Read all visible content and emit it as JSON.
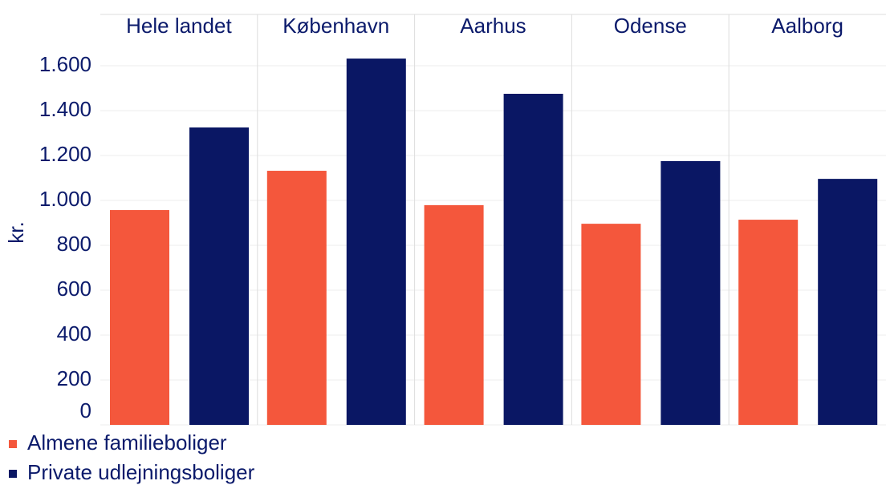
{
  "chart_data": {
    "type": "bar",
    "categories": [
      "Hele landet",
      "København",
      "Aarhus",
      "Odense",
      "Aalborg"
    ],
    "y_label": "kr.",
    "series": [
      {
        "name": "Almene familieboliger",
        "color": "#f4573c",
        "values": [
          957,
          1132,
          979,
          896,
          914
        ]
      },
      {
        "name": "Private udlejningsboliger",
        "color": "#0a1764",
        "values": [
          1325,
          1632,
          1475,
          1175,
          1096
        ]
      }
    ],
    "ylim": [
      0,
      1800
    ],
    "yticks": [
      0,
      200,
      400,
      600,
      800,
      {
        "value": 1000,
        "label": "1.000"
      },
      {
        "value": 1200,
        "label": "1.200"
      },
      {
        "value": 1400,
        "label": "1.400"
      },
      {
        "value": 1600,
        "label": "1.600"
      }
    ],
    "grid": true
  }
}
